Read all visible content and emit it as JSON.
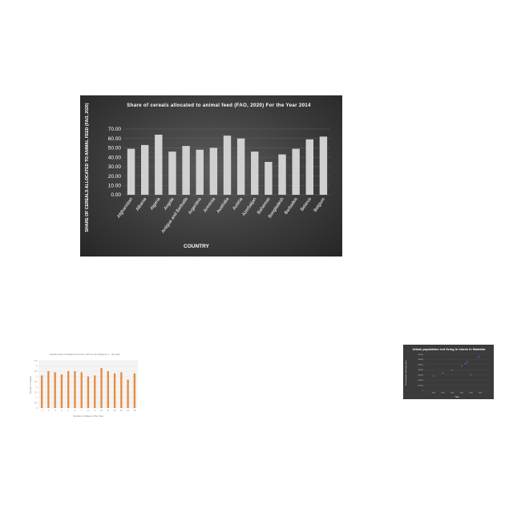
{
  "chart_data": [
    {
      "type": "bar",
      "title": "Share of cereals allocated to animal feed (FAO, 2020)  For the Year  2014",
      "xlabel": "COUNTRY",
      "ylabel": "SHARE OF CEREALS ALLOCATED TO ANIMAL FEED (FAO, 2020)",
      "categories": [
        "Afghanistan",
        "Albania",
        "Algeria",
        "Angola",
        "Antigua and Barbuda",
        "Argentina",
        "Armenia",
        "Australia",
        "Austria",
        "Azerbaijan",
        "Bahamas",
        "Bangladesh",
        "Barbados",
        "Belarus",
        "Belgium"
      ],
      "values": [
        49,
        53,
        64,
        46,
        52,
        48,
        50,
        63,
        60,
        46,
        35,
        43,
        49,
        59,
        62
      ],
      "ylim": [
        0,
        70
      ],
      "yticks": [
        "0.00",
        "10.00",
        "20.00",
        "30.00",
        "40.00",
        "50.00",
        "60.00",
        "70.00"
      ],
      "colors": {
        "background": "#3a3a3a",
        "bar": "#d0d0d0",
        "text": "#ffffff"
      }
    },
    {
      "type": "bar",
      "title": "Weekly count of Scalanct Fermenc: Lith For apr bebserze 2... 30 years",
      "xlabel": "Number of Week of the Year",
      "ylabel": "Number of Weeks",
      "categories": [
        "1",
        "2",
        "3",
        "4",
        "5",
        "6",
        "7",
        "8",
        "9",
        "10",
        "11",
        "12",
        "13",
        "14",
        "15"
      ],
      "values": [
        3.1,
        3.5,
        3.4,
        3.2,
        3.5,
        3.5,
        3.4,
        3.0,
        3.1,
        3.8,
        3.5,
        3.3,
        3.4,
        2.7,
        3.3
      ],
      "ylim": [
        0,
        4.5
      ],
      "yticks": [
        "0",
        "0.5",
        "1",
        "1.5",
        "2",
        "2.5",
        "3",
        "3.5",
        "4",
        "4.5"
      ],
      "colors": {
        "bar": "#e88a3c",
        "background": "#ffffff"
      }
    },
    {
      "type": "scatter",
      "title": "Urban population not living in slums in Namibia",
      "xlabel": "Year",
      "ylabel": "Urban population not living in slums",
      "points": [
        {
          "x": 1990,
          "y": 280000
        },
        {
          "x": 1995,
          "y": 340000
        },
        {
          "x": 2000,
          "y": 390000
        },
        {
          "x": 2005,
          "y": 470000
        },
        {
          "x": 2007,
          "y": 520000
        },
        {
          "x": 2008,
          "y": 560000
        },
        {
          "x": 2010,
          "y": 300000
        },
        {
          "x": 2014,
          "y": 650000
        }
      ],
      "xlim": [
        1985,
        2020
      ],
      "ylim": [
        0,
        700000
      ],
      "colors": {
        "background": "#3b3b3b",
        "point": "#4a6fd6",
        "text": "#ffffff"
      }
    }
  ]
}
